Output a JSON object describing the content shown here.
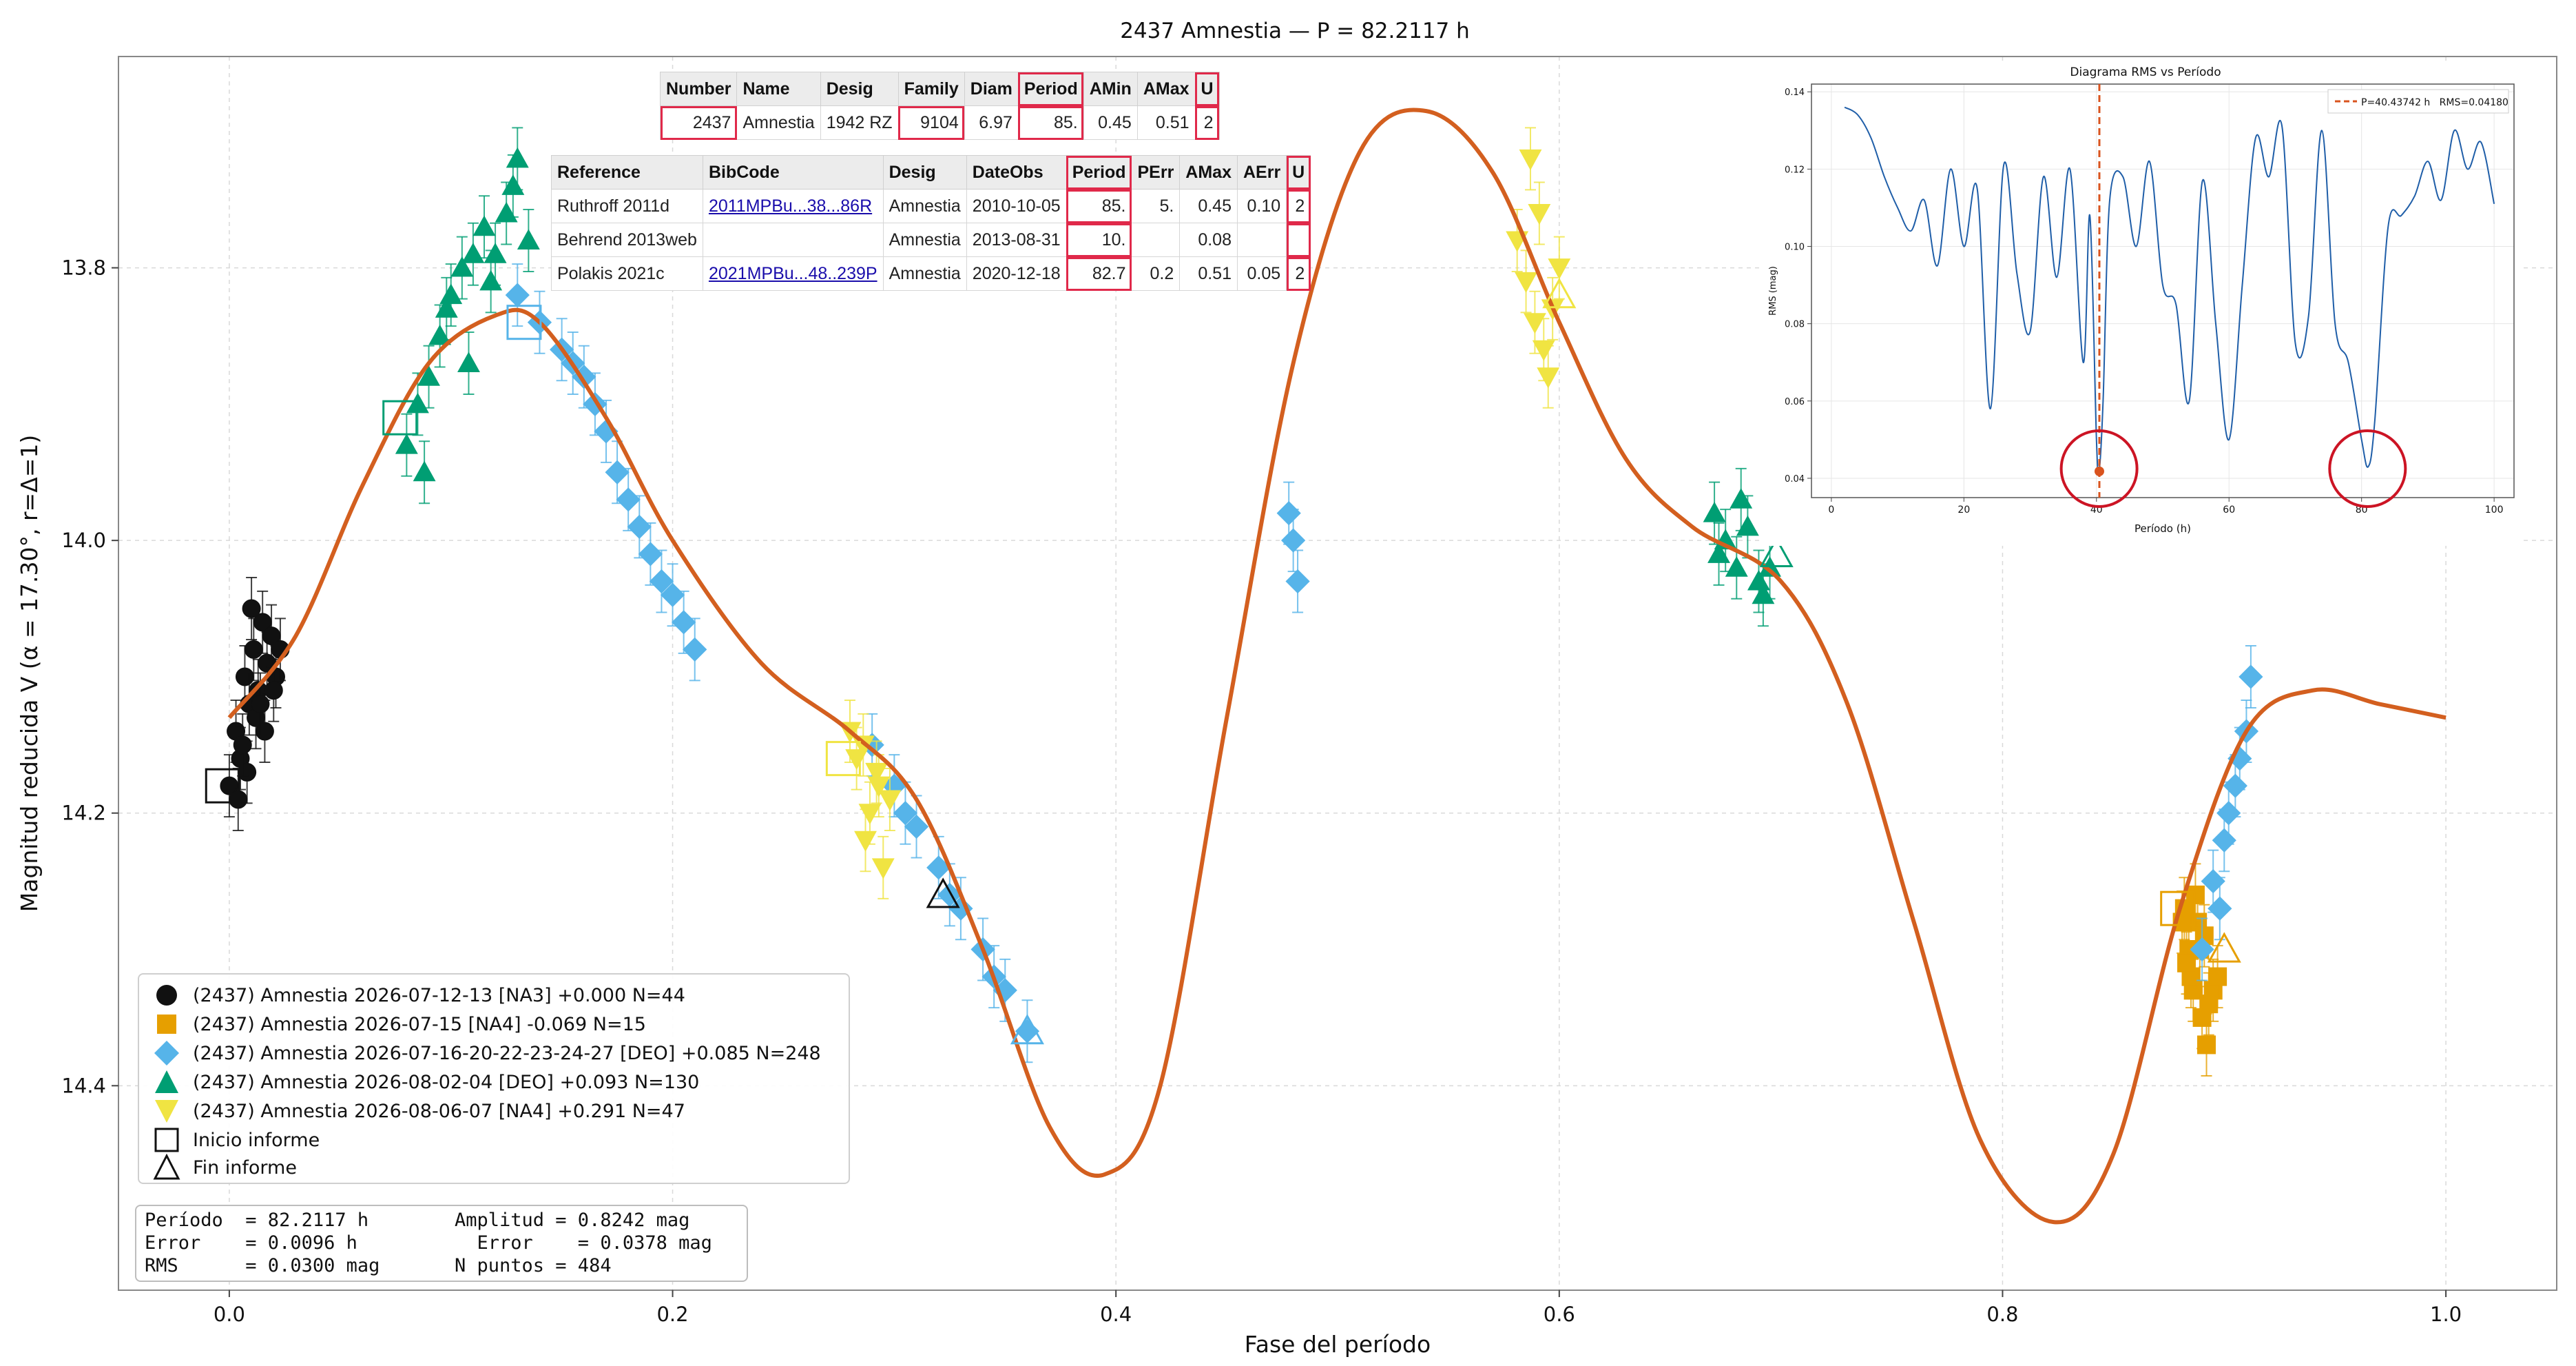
{
  "chart_data": {
    "type": "scatter",
    "title": "2437 Amnestia — P = 82.2117 h",
    "xlabel": "Fase del período",
    "ylabel": "Magnitud reducida V  (α = 17.30°, r=Δ=1)",
    "xlim": [
      -0.05,
      1.05
    ],
    "ylim": [
      14.55,
      13.645
    ],
    "y_inverted": true,
    "grid": true,
    "x_ticks": [
      "0.0",
      "0.2",
      "0.4",
      "0.6",
      "0.8",
      "1.0"
    ],
    "x_tick_values": [
      0.0,
      0.2,
      0.4,
      0.6,
      0.8,
      1.0
    ],
    "y_ticks": [
      "13.8",
      "14.0",
      "14.2",
      "14.4"
    ],
    "y_tick_values": [
      13.8,
      14.0,
      14.2,
      14.4
    ],
    "fit_curve": {
      "color": "#d35f1f",
      "x": [
        0.0,
        0.03,
        0.06,
        0.09,
        0.12,
        0.14,
        0.17,
        0.2,
        0.24,
        0.28,
        0.31,
        0.34,
        0.37,
        0.395,
        0.42,
        0.45,
        0.48,
        0.51,
        0.54,
        0.57,
        0.6,
        0.63,
        0.66,
        0.7,
        0.73,
        0.76,
        0.79,
        0.823,
        0.85,
        0.88,
        0.91,
        0.94,
        0.97,
        1.0
      ],
      "y": [
        14.13,
        14.07,
        13.96,
        13.87,
        13.835,
        13.84,
        13.91,
        14.0,
        14.09,
        14.14,
        14.19,
        14.3,
        14.43,
        14.465,
        14.4,
        14.13,
        13.87,
        13.715,
        13.685,
        13.73,
        13.84,
        13.94,
        13.99,
        14.03,
        14.12,
        14.28,
        14.44,
        14.5,
        14.45,
        14.27,
        14.14,
        14.11,
        14.12,
        14.13
      ]
    },
    "series": [
      {
        "name": "(2437) Amnestia 2026-07-12-13 [NA3] +0.000 N=44",
        "color": "#111111",
        "marker": "circle",
        "x": [
          0.0,
          0.003,
          0.005,
          0.007,
          0.009,
          0.011,
          0.013,
          0.015,
          0.017,
          0.019,
          0.021,
          0.023,
          0.004,
          0.008,
          0.012,
          0.016,
          0.02,
          0.006,
          0.01,
          0.014
        ],
        "y": [
          14.18,
          14.14,
          14.16,
          14.1,
          14.12,
          14.08,
          14.11,
          14.06,
          14.09,
          14.07,
          14.1,
          14.08,
          14.19,
          14.17,
          14.13,
          14.14,
          14.11,
          14.15,
          14.05,
          14.12
        ]
      },
      {
        "name": "(2437) Amnestia 2026-07-15 [NA4] -0.069 N=15",
        "color": "#e69f00",
        "marker": "square",
        "x": [
          0.882,
          0.884,
          0.886,
          0.888,
          0.89,
          0.892,
          0.885,
          0.887,
          0.889,
          0.891,
          0.893,
          0.883,
          0.881,
          0.895,
          0.897
        ],
        "y": [
          14.27,
          14.3,
          14.33,
          14.28,
          14.35,
          14.37,
          14.32,
          14.26,
          14.3,
          14.29,
          14.34,
          14.31,
          14.28,
          14.33,
          14.32
        ]
      },
      {
        "name": "(2437) Amnestia 2026-07-16-20-22-23-24-27 [DEO] +0.085 N=248",
        "color": "#56b4e9",
        "marker": "diamond",
        "x": [
          0.13,
          0.14,
          0.15,
          0.16,
          0.17,
          0.175,
          0.18,
          0.19,
          0.2,
          0.205,
          0.21,
          0.155,
          0.165,
          0.185,
          0.195,
          0.29,
          0.3,
          0.31,
          0.32,
          0.33,
          0.34,
          0.35,
          0.36,
          0.305,
          0.325,
          0.345,
          0.478,
          0.48,
          0.482,
          0.895,
          0.9,
          0.905,
          0.91,
          0.912,
          0.898,
          0.902,
          0.907,
          0.89
        ],
        "y": [
          13.82,
          13.84,
          13.86,
          13.88,
          13.92,
          13.95,
          13.97,
          14.01,
          14.04,
          14.06,
          14.08,
          13.87,
          13.9,
          13.99,
          14.03,
          14.15,
          14.18,
          14.21,
          14.24,
          14.27,
          14.3,
          14.33,
          14.36,
          14.2,
          14.26,
          14.32,
          13.98,
          14.0,
          14.03,
          14.25,
          14.22,
          14.18,
          14.14,
          14.1,
          14.27,
          14.2,
          14.16,
          14.3
        ]
      },
      {
        "name": "(2437) Amnestia 2026-08-02-04 [DEO] +0.093 N=130",
        "color": "#009e73",
        "marker": "triangle-up",
        "x": [
          0.08,
          0.085,
          0.09,
          0.095,
          0.1,
          0.105,
          0.11,
          0.115,
          0.12,
          0.125,
          0.13,
          0.135,
          0.088,
          0.098,
          0.108,
          0.118,
          0.128,
          0.67,
          0.675,
          0.68,
          0.685,
          0.69,
          0.695,
          0.672,
          0.682,
          0.692
        ],
        "y": [
          13.93,
          13.9,
          13.88,
          13.85,
          13.82,
          13.8,
          13.79,
          13.77,
          13.79,
          13.76,
          13.72,
          13.78,
          13.95,
          13.83,
          13.87,
          13.81,
          13.74,
          13.98,
          14.0,
          14.02,
          13.99,
          14.03,
          14.02,
          14.01,
          13.97,
          14.04
        ]
      },
      {
        "name": "(2437) Amnestia 2026-08-06-07 [NA4] +0.291 N=47",
        "color": "#f0e442",
        "marker": "triangle-down",
        "x": [
          0.28,
          0.283,
          0.286,
          0.289,
          0.292,
          0.295,
          0.298,
          0.287,
          0.293,
          0.581,
          0.585,
          0.589,
          0.593,
          0.597,
          0.6,
          0.587,
          0.595,
          0.591
        ],
        "y": [
          14.14,
          14.16,
          14.15,
          14.2,
          14.17,
          14.24,
          14.19,
          14.22,
          14.18,
          13.78,
          13.81,
          13.84,
          13.86,
          13.83,
          13.8,
          13.72,
          13.88,
          13.76
        ]
      }
    ],
    "marker_inicio": {
      "name": "Inicio informe",
      "marker": "open-square",
      "points": [
        {
          "x": -0.003,
          "y": 14.18,
          "color": "#111111"
        },
        {
          "x": 0.879,
          "y": 14.27,
          "color": "#e69f00"
        },
        {
          "x": 0.133,
          "y": 13.84,
          "color": "#56b4e9"
        },
        {
          "x": 0.077,
          "y": 13.91,
          "color": "#009e73"
        },
        {
          "x": 0.277,
          "y": 14.16,
          "color": "#f0e442"
        }
      ]
    },
    "marker_fin": {
      "name": "Fin informe",
      "marker": "open-triangle",
      "points": [
        {
          "x": 0.322,
          "y": 14.26,
          "color": "#111111"
        },
        {
          "x": 0.9,
          "y": 14.3,
          "color": "#e69f00"
        },
        {
          "x": 0.36,
          "y": 14.36,
          "color": "#56b4e9"
        },
        {
          "x": 0.698,
          "y": 14.01,
          "color": "#009e73"
        },
        {
          "x": 0.6,
          "y": 13.82,
          "color": "#f0e442"
        }
      ]
    },
    "inset": {
      "type": "line",
      "title": "Diagrama RMS vs Período",
      "xlabel": "Período (h)",
      "ylabel": "RMS (mag)",
      "xlim": [
        -3,
        103
      ],
      "ylim": [
        0.035,
        0.142
      ],
      "x_ticks": [
        "0",
        "20",
        "40",
        "60",
        "80",
        "100"
      ],
      "x_tick_values": [
        0,
        20,
        40,
        60,
        80,
        100
      ],
      "y_ticks": [
        "0.04",
        "0.06",
        "0.08",
        "0.10",
        "0.12",
        "0.14"
      ],
      "y_tick_values": [
        0.04,
        0.06,
        0.08,
        0.1,
        0.12,
        0.14
      ],
      "line_color": "#1f5ea8",
      "marker_line": {
        "x": 40.43742,
        "color": "#d9531e",
        "label": "P=40.43742 h   RMS=0.04180"
      },
      "best_point": {
        "x": 40.43742,
        "y": 0.0418
      },
      "circles": [
        {
          "x": 40.4,
          "y": 0.0425
        },
        {
          "x": 80.9,
          "y": 0.0425
        }
      ],
      "x": [
        2,
        4,
        6,
        8,
        10,
        12,
        14,
        16,
        18,
        20,
        22,
        24,
        26,
        28,
        30,
        32,
        34,
        36,
        38,
        39,
        40,
        40.4,
        41,
        42,
        44,
        46,
        48,
        50,
        52,
        54,
        56,
        58,
        60,
        62,
        64,
        66,
        68,
        70,
        72,
        74,
        76,
        78,
        80,
        81,
        82,
        84,
        86,
        88,
        90,
        92,
        94,
        96,
        98,
        100
      ],
      "y": [
        0.136,
        0.134,
        0.128,
        0.118,
        0.11,
        0.104,
        0.112,
        0.095,
        0.12,
        0.1,
        0.115,
        0.058,
        0.121,
        0.093,
        0.078,
        0.118,
        0.092,
        0.12,
        0.07,
        0.108,
        0.05,
        0.0418,
        0.06,
        0.112,
        0.118,
        0.1,
        0.122,
        0.09,
        0.085,
        0.06,
        0.117,
        0.08,
        0.05,
        0.09,
        0.128,
        0.118,
        0.131,
        0.075,
        0.082,
        0.13,
        0.08,
        0.07,
        0.05,
        0.043,
        0.055,
        0.105,
        0.108,
        0.113,
        0.122,
        0.112,
        0.13,
        0.12,
        0.127,
        0.111
      ]
    }
  },
  "legend": {
    "entries": [
      "(2437) Amnestia 2026-07-12-13 [NA3] +0.000 N=44",
      "(2437) Amnestia 2026-07-15 [NA4] -0.069 N=15",
      "(2437) Amnestia 2026-07-16-20-22-23-24-27 [DEO] +0.085 N=248",
      "(2437) Amnestia 2026-08-02-04 [DEO] +0.093 N=130",
      "(2437) Amnestia 2026-08-06-07 [NA4] +0.291 N=47",
      "Inicio informe",
      "Fin informe"
    ]
  },
  "stats": {
    "line1a": "Período  = 82.2117 h",
    "line1b": "Amplitud = 0.8242 mag",
    "line2a": "Error    = 0.0096 h",
    "line2b": "  Error    = 0.0378 mag",
    "line3a": "RMS      = 0.0300 mag",
    "line3b": "N puntos = 484"
  },
  "table_top": {
    "headers": [
      "Number",
      "Name",
      "Desig",
      "Family",
      "Diam",
      "Period",
      "AMin",
      "AMax",
      "U"
    ],
    "row": [
      "2437",
      "Amnestia",
      "1942 RZ",
      "9104",
      "6.97",
      "85.",
      "0.45",
      "0.51",
      "2"
    ]
  },
  "table_refs": {
    "headers": [
      "Reference",
      "BibCode",
      "Desig",
      "DateObs",
      "Period",
      "PErr",
      "AMax",
      "AErr",
      "U"
    ],
    "rows": [
      [
        "Ruthroff 2011d",
        "2011MPBu...38...86R",
        "Amnestia",
        "2010-10-05",
        "85.",
        "5.",
        "0.45",
        "0.10",
        "2"
      ],
      [
        "Behrend 2013web",
        "",
        "Amnestia",
        "2013-08-31",
        "10.",
        "",
        "0.08",
        "",
        ""
      ],
      [
        "Polakis 2021c",
        "2021MPBu...48..239P",
        "Amnestia",
        "2020-12-18",
        "82.7",
        "0.2",
        "0.51",
        "0.05",
        "2"
      ]
    ]
  }
}
